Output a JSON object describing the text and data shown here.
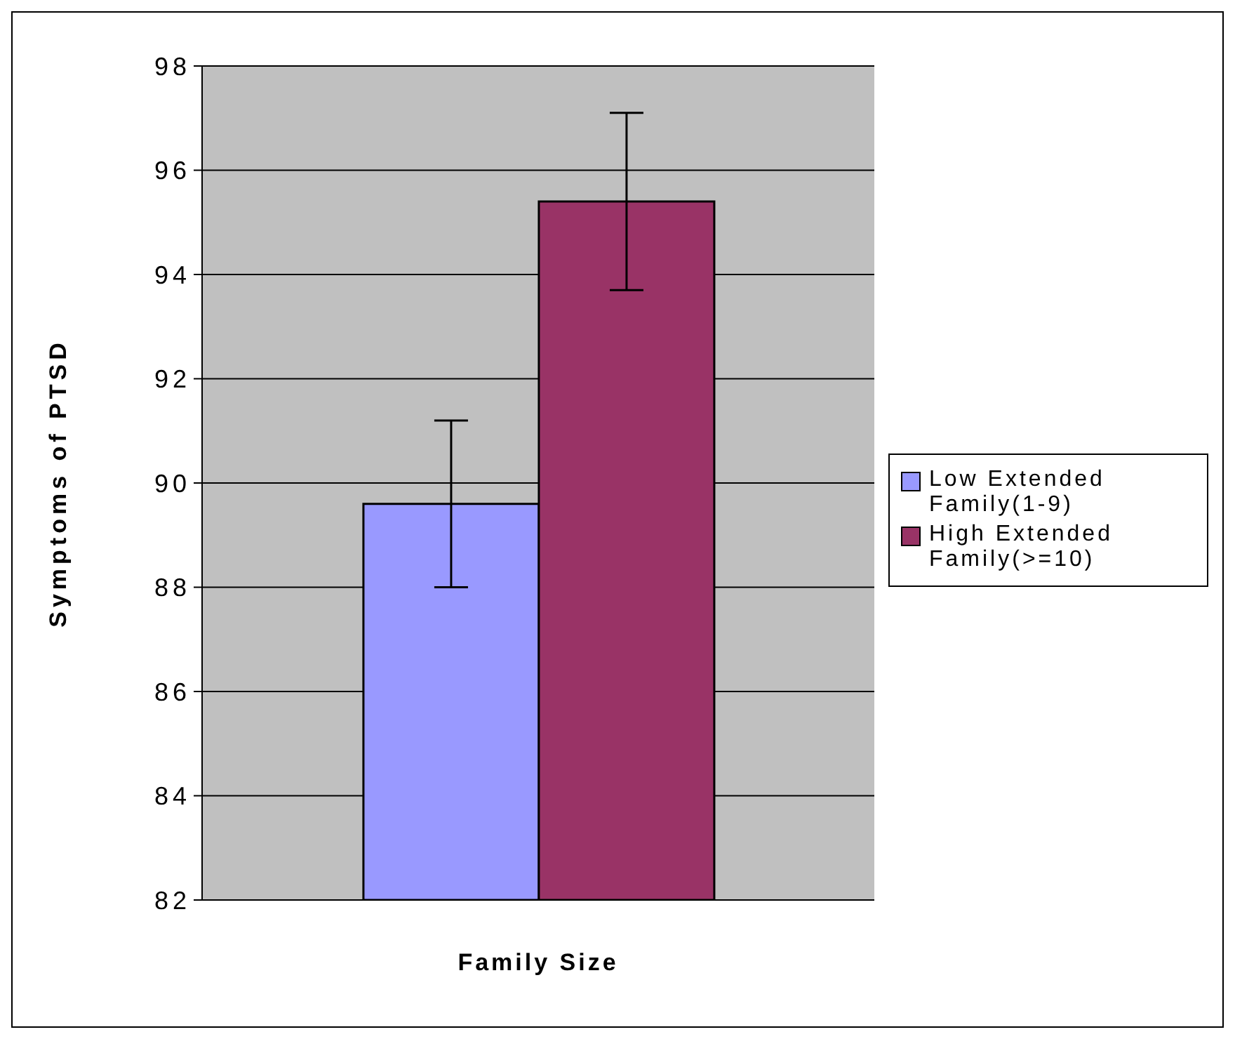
{
  "chart_data": {
    "type": "bar",
    "xlabel": "Family Size",
    "ylabel": "Symptoms of PTSD",
    "categories": [
      null
    ],
    "series": [
      {
        "name": "Low Extended Family(1-9)",
        "color": "#9999ff",
        "values": [
          89.6
        ],
        "errors": [
          1.6
        ]
      },
      {
        "name": "High Extended Family(>=10)",
        "color": "#993366",
        "values": [
          95.4
        ],
        "errors": [
          1.7
        ]
      }
    ],
    "ylim": [
      82,
      98
    ],
    "yticks": [
      82,
      84,
      86,
      88,
      90,
      92,
      94,
      96,
      98
    ],
    "grid": "y",
    "legend": "right"
  }
}
